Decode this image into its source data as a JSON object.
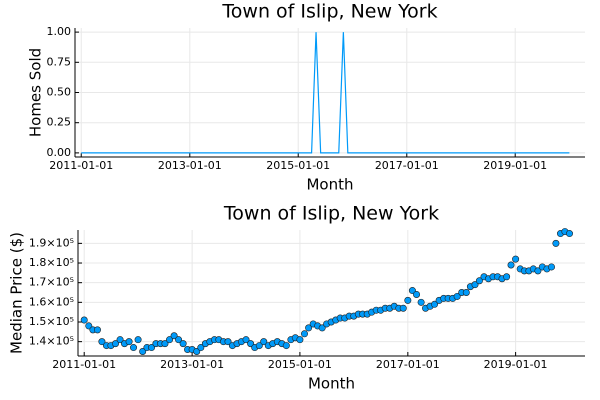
{
  "chart_data": [
    {
      "type": "line",
      "title": "Town of Islip, New York",
      "x_label": "Month",
      "y_label": "Homes Sold",
      "color": "#009af9",
      "grid": true,
      "x": [
        "2011-01-01",
        "2011-02-01",
        "2011-03-01",
        "2011-04-01",
        "2011-05-01",
        "2011-06-01",
        "2011-07-01",
        "2011-08-01",
        "2011-09-01",
        "2011-10-01",
        "2011-11-01",
        "2011-12-01",
        "2012-01-01",
        "2012-02-01",
        "2012-03-01",
        "2012-04-01",
        "2012-05-01",
        "2012-06-01",
        "2012-07-01",
        "2012-08-01",
        "2012-09-01",
        "2012-10-01",
        "2012-11-01",
        "2012-12-01",
        "2013-01-01",
        "2013-02-01",
        "2013-03-01",
        "2013-04-01",
        "2013-05-01",
        "2013-06-01",
        "2013-07-01",
        "2013-08-01",
        "2013-09-01",
        "2013-10-01",
        "2013-11-01",
        "2013-12-01",
        "2014-01-01",
        "2014-02-01",
        "2014-03-01",
        "2014-04-01",
        "2014-05-01",
        "2014-06-01",
        "2014-07-01",
        "2014-08-01",
        "2014-09-01",
        "2014-10-01",
        "2014-11-01",
        "2014-12-01",
        "2015-01-01",
        "2015-02-01",
        "2015-03-01",
        "2015-04-01",
        "2015-05-01",
        "2015-06-01",
        "2015-07-01",
        "2015-08-01",
        "2015-09-01",
        "2015-10-01",
        "2015-11-01",
        "2015-12-01",
        "2016-01-01",
        "2016-02-01",
        "2016-03-01",
        "2016-04-01",
        "2016-05-01",
        "2016-06-01",
        "2016-07-01",
        "2016-08-01",
        "2016-09-01",
        "2016-10-01",
        "2016-11-01",
        "2016-12-01",
        "2017-01-01",
        "2017-02-01",
        "2017-03-01",
        "2017-04-01",
        "2017-05-01",
        "2017-06-01",
        "2017-07-01",
        "2017-08-01",
        "2017-09-01",
        "2017-10-01",
        "2017-11-01",
        "2017-12-01",
        "2018-01-01",
        "2018-02-01",
        "2018-03-01",
        "2018-04-01",
        "2018-05-01",
        "2018-06-01",
        "2018-07-01",
        "2018-08-01",
        "2018-09-01",
        "2018-10-01",
        "2018-11-01",
        "2018-12-01",
        "2019-01-01",
        "2019-02-01",
        "2019-03-01",
        "2019-04-01",
        "2019-05-01",
        "2019-06-01",
        "2019-07-01",
        "2019-08-01",
        "2019-09-01",
        "2019-10-01",
        "2019-11-01",
        "2019-12-01",
        "2020-01-01"
      ],
      "values": [
        0,
        0,
        0,
        0,
        0,
        0,
        0,
        0,
        0,
        0,
        0,
        0,
        0,
        0,
        0,
        0,
        0,
        0,
        0,
        0,
        0,
        0,
        0,
        0,
        0,
        0,
        0,
        0,
        0,
        0,
        0,
        0,
        0,
        0,
        0,
        0,
        0,
        0,
        0,
        0,
        0,
        0,
        0,
        0,
        0,
        0,
        0,
        0,
        0,
        0,
        0,
        0,
        1,
        0,
        0,
        0,
        0,
        0,
        1,
        0,
        0,
        0,
        0,
        0,
        0,
        0,
        0,
        0,
        0,
        0,
        0,
        0,
        0,
        0,
        0,
        0,
        0,
        0,
        0,
        0,
        0,
        0,
        0,
        0,
        0,
        0,
        0,
        0,
        0,
        0,
        0,
        0,
        0,
        0,
        0,
        0,
        0,
        0,
        0,
        0,
        0,
        0,
        0,
        0,
        0,
        0,
        0,
        0,
        0
      ],
      "xlim": [
        "2010-11-20",
        "2020-04-15"
      ],
      "xticks": [
        "2011-01-01",
        "2013-01-01",
        "2015-01-01",
        "2017-01-01",
        "2019-01-01"
      ],
      "ylim": [
        -0.034,
        1.034
      ],
      "yticks": [
        {
          "value": 0,
          "label": "0.00"
        },
        {
          "value": 0.25,
          "label": "0.25"
        },
        {
          "value": 0.5,
          "label": "0.50"
        },
        {
          "value": 0.75,
          "label": "0.75"
        },
        {
          "value": 1,
          "label": "1.00"
        }
      ]
    },
    {
      "type": "scatter",
      "title": "Town of Islip, New York",
      "x_label": "Month",
      "y_label": "Median Price ($)",
      "color": "#009af9",
      "grid": true,
      "x": [
        "2011-01-01",
        "2011-02-01",
        "2011-03-01",
        "2011-04-01",
        "2011-05-01",
        "2011-06-01",
        "2011-07-01",
        "2011-08-01",
        "2011-09-01",
        "2011-10-01",
        "2011-11-01",
        "2011-12-01",
        "2012-01-01",
        "2012-02-01",
        "2012-03-01",
        "2012-04-01",
        "2012-05-01",
        "2012-06-01",
        "2012-07-01",
        "2012-08-01",
        "2012-09-01",
        "2012-10-01",
        "2012-11-01",
        "2012-12-01",
        "2013-01-01",
        "2013-02-01",
        "2013-03-01",
        "2013-04-01",
        "2013-05-01",
        "2013-06-01",
        "2013-07-01",
        "2013-08-01",
        "2013-09-01",
        "2013-10-01",
        "2013-11-01",
        "2013-12-01",
        "2014-01-01",
        "2014-02-01",
        "2014-03-01",
        "2014-04-01",
        "2014-05-01",
        "2014-06-01",
        "2014-07-01",
        "2014-08-01",
        "2014-09-01",
        "2014-10-01",
        "2014-11-01",
        "2014-12-01",
        "2015-01-01",
        "2015-02-01",
        "2015-03-01",
        "2015-04-01",
        "2015-05-01",
        "2015-06-01",
        "2015-07-01",
        "2015-08-01",
        "2015-09-01",
        "2015-10-01",
        "2015-11-01",
        "2015-12-01",
        "2016-01-01",
        "2016-02-01",
        "2016-03-01",
        "2016-04-01",
        "2016-05-01",
        "2016-06-01",
        "2016-07-01",
        "2016-08-01",
        "2016-09-01",
        "2016-10-01",
        "2016-11-01",
        "2016-12-01",
        "2017-01-01",
        "2017-02-01",
        "2017-03-01",
        "2017-04-01",
        "2017-05-01",
        "2017-06-01",
        "2017-07-01",
        "2017-08-01",
        "2017-09-01",
        "2017-10-01",
        "2017-11-01",
        "2017-12-01",
        "2018-01-01",
        "2018-02-01",
        "2018-03-01",
        "2018-04-01",
        "2018-05-01",
        "2018-06-01",
        "2018-07-01",
        "2018-08-01",
        "2018-09-01",
        "2018-10-01",
        "2018-11-01",
        "2018-12-01",
        "2019-01-01",
        "2019-02-01",
        "2019-03-01",
        "2019-04-01",
        "2019-05-01",
        "2019-06-01",
        "2019-07-01",
        "2019-08-01",
        "2019-09-01",
        "2019-10-01",
        "2019-11-01",
        "2019-12-01",
        "2020-01-01"
      ],
      "values": [
        151000,
        148000,
        146000,
        146000,
        140000,
        138000,
        138000,
        139000,
        141000,
        139000,
        140000,
        137000,
        141000,
        135000,
        137000,
        137000,
        139000,
        139000,
        139000,
        141000,
        143000,
        141000,
        139000,
        136000,
        136000,
        135000,
        137000,
        139000,
        140000,
        141000,
        141000,
        140000,
        140000,
        138000,
        139000,
        140000,
        141000,
        139000,
        137000,
        138000,
        140000,
        138000,
        139000,
        140000,
        139000,
        138000,
        141000,
        142000,
        141000,
        144000,
        147000,
        149000,
        148000,
        147000,
        149000,
        150000,
        151000,
        152000,
        152000,
        153000,
        153000,
        154000,
        154000,
        154000,
        155000,
        156000,
        156000,
        157000,
        157000,
        158000,
        157000,
        157000,
        161000,
        166000,
        164000,
        160000,
        157000,
        158000,
        159000,
        161000,
        162000,
        162000,
        162000,
        163000,
        165000,
        165000,
        168000,
        169000,
        171000,
        173000,
        172000,
        173000,
        173000,
        172000,
        173000,
        179000,
        182000,
        177000,
        176000,
        176000,
        177000,
        176000,
        178000,
        177000,
        178000,
        190000,
        195000,
        196000,
        195000
      ],
      "xlim": [
        "2010-11-20",
        "2020-04-15"
      ],
      "xticks": [
        "2011-01-01",
        "2013-01-01",
        "2015-01-01",
        "2017-01-01",
        "2019-01-01"
      ],
      "ylim": [
        132700,
        196800
      ],
      "yticks": [
        {
          "value": 140000,
          "label": "1.4×10⁵"
        },
        {
          "value": 150000,
          "label": "1.5×10⁵"
        },
        {
          "value": 160000,
          "label": "1.6×10⁵"
        },
        {
          "value": 170000,
          "label": "1.7×10⁵"
        },
        {
          "value": 180000,
          "label": "1.8×10⁵"
        },
        {
          "value": 190000,
          "label": "1.9×10⁵"
        }
      ]
    }
  ]
}
